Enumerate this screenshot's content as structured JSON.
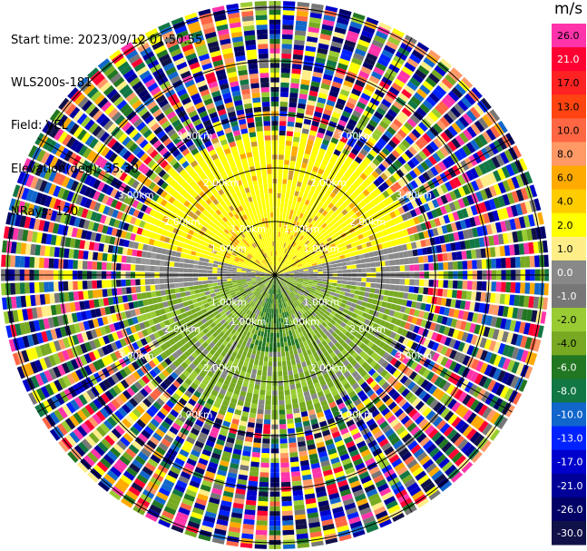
{
  "info": {
    "start_time": "Start time: 2023/09/12 01:50:55",
    "instrument": "WLS200s-181",
    "field": "Field: VEL",
    "elevation": "Elevation(deg): 35.30",
    "nrays": "NRays: 120"
  },
  "chart_data": {
    "type": "heatmap",
    "projection": "polar PPI",
    "field": "VEL",
    "units": "m/s",
    "nrays": 120,
    "elevation_deg": 35.3,
    "range_rings_km": [
      1.0,
      2.0,
      3.0
    ],
    "ring_labels": [
      "1.00km",
      "2.00km",
      "3.00km"
    ],
    "colorbar": {
      "unit": "m/s",
      "ticks": [
        "26.0",
        "21.0",
        "17.0",
        "13.0",
        "10.0",
        "8.0",
        "6.0",
        "4.0",
        "2.0",
        "1.0",
        "0.0",
        "-1.0",
        "-2.0",
        "-4.0",
        "-6.0",
        "-8.0",
        "-10.0",
        "-13.0",
        "-17.0",
        "-21.0",
        "-26.0",
        "-30.0"
      ],
      "colors": [
        "#ff33aa",
        "#ff0033",
        "#ff2222",
        "#ff4411",
        "#ff6644",
        "#ff9966",
        "#ffaa00",
        "#ffcc00",
        "#ffff00",
        "#ffee88",
        "#888888",
        "#777777",
        "#99cc33",
        "#77aa22",
        "#227722",
        "#117744",
        "#1166cc",
        "#0022ff",
        "#0000cc",
        "#000099",
        "#000066",
        "#11114a"
      ]
    }
  }
}
